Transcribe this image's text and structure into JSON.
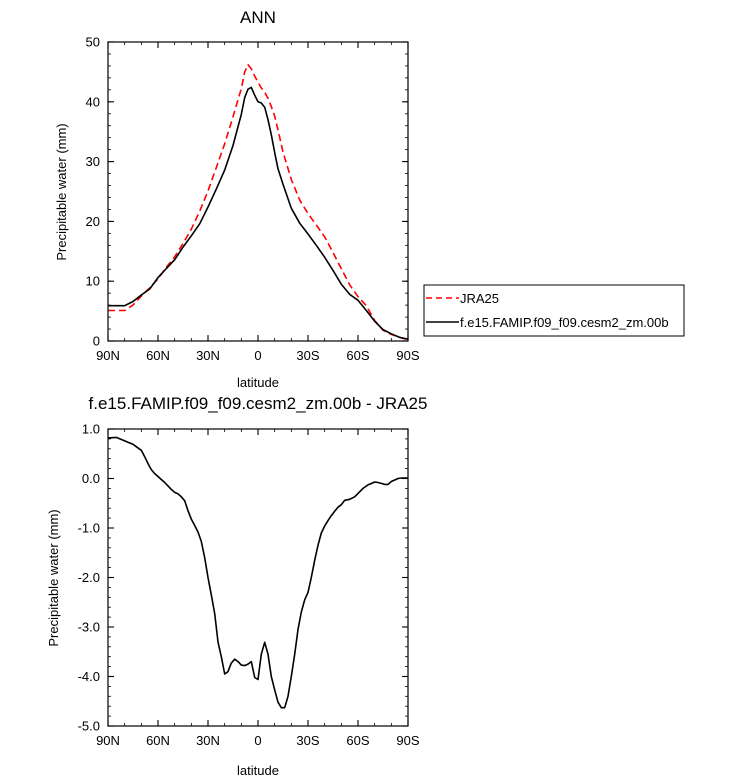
{
  "chart_data": [
    {
      "type": "line",
      "title": "ANN",
      "xlabel": "latitude",
      "ylabel": "Precipitable water (mm)",
      "xlim": [
        90,
        -90
      ],
      "ylim": [
        0,
        50
      ],
      "yticks": [
        0,
        10,
        20,
        30,
        40,
        50
      ],
      "ytick_labels": [
        "0",
        "10",
        "20",
        "30",
        "40",
        "50"
      ],
      "xticks": [
        90,
        60,
        30,
        0,
        -30,
        -60,
        -90
      ],
      "xtick_labels": [
        "90N",
        "60N",
        "30N",
        "0",
        "30S",
        "60S",
        "90S"
      ],
      "legend": "right, outside plot",
      "series": [
        {
          "name": "JRA25",
          "color": "#ff0000",
          "dash": "dashed",
          "x": [
            90,
            80,
            75,
            70,
            65,
            60,
            55,
            50,
            45,
            40,
            35,
            30,
            25,
            20,
            15,
            10,
            8,
            6,
            4,
            2,
            0,
            -2,
            -4,
            -6,
            -8,
            -10,
            -12,
            -15,
            -20,
            -25,
            -30,
            -35,
            -40,
            -45,
            -50,
            -55,
            -60,
            -65,
            -70,
            -75,
            -80,
            -85,
            -90
          ],
          "values": [
            5.1,
            5.1,
            6.0,
            7.5,
            8.9,
            10.4,
            12.3,
            14.1,
            16.3,
            18.7,
            21.7,
            25.1,
            29.0,
            33.0,
            37.5,
            42.2,
            45.0,
            46.2,
            45.5,
            44.3,
            43.3,
            42.3,
            41.6,
            40.6,
            39.2,
            37.6,
            35.3,
            31.6,
            27.0,
            23.6,
            21.3,
            19.4,
            17.4,
            14.8,
            12.1,
            9.4,
            7.4,
            5.9,
            3.4,
            1.8,
            1.1,
            0.6,
            0.2
          ]
        },
        {
          "name": "f.e15.FAMIP.f09_f09.cesm2_zm.00b",
          "color": "#000000",
          "dash": "solid",
          "x": [
            90,
            80,
            75,
            70,
            65,
            60,
            55,
            50,
            45,
            40,
            35,
            30,
            25,
            20,
            15,
            10,
            8,
            6,
            4,
            2,
            0,
            -2,
            -4,
            -6,
            -8,
            -10,
            -12,
            -15,
            -20,
            -25,
            -30,
            -35,
            -40,
            -45,
            -50,
            -55,
            -60,
            -65,
            -70,
            -75,
            -80,
            -85,
            -90
          ],
          "values": [
            5.9,
            5.9,
            6.6,
            7.7,
            8.7,
            10.6,
            12.1,
            13.6,
            15.7,
            17.6,
            19.6,
            22.4,
            25.4,
            28.6,
            32.7,
            37.9,
            40.7,
            42.1,
            42.4,
            41.1,
            40.0,
            39.8,
            39.1,
            37.0,
            34.5,
            31.5,
            28.8,
            26.2,
            22.2,
            19.7,
            17.9,
            16.0,
            14.0,
            11.8,
            9.5,
            7.8,
            6.8,
            5.1,
            3.3,
            1.9,
            1.2,
            0.6,
            0.3
          ]
        }
      ]
    },
    {
      "type": "line",
      "title": "f.e15.FAMIP.f09_f09.cesm2_zm.00b - JRA25",
      "xlabel": "latitude",
      "ylabel": "Precipitable water (mm)",
      "xlim": [
        90,
        -90
      ],
      "ylim": [
        -5,
        1
      ],
      "yticks": [
        1,
        0,
        -1,
        -2,
        -3,
        -4,
        -5
      ],
      "ytick_labels": [
        "1.0",
        "0.0",
        "-1.0",
        "-2.0",
        "-3.0",
        "-4.0",
        "-5.0"
      ],
      "xticks": [
        90,
        60,
        30,
        0,
        -30,
        -60,
        -90
      ],
      "xtick_labels": [
        "90N",
        "60N",
        "30N",
        "0",
        "30S",
        "60S",
        "90S"
      ],
      "series": [
        {
          "color": "#000000",
          "dash": "solid",
          "x": [
            90,
            85,
            80,
            75,
            70,
            68,
            66,
            64,
            62,
            60,
            58,
            56,
            54,
            52,
            50,
            48,
            46,
            44,
            42,
            40,
            38,
            36,
            34,
            32,
            30,
            28,
            26,
            24,
            22,
            20,
            18,
            16,
            14,
            12,
            10,
            8,
            6,
            4,
            2,
            0,
            -2,
            -4,
            -6,
            -8,
            -10,
            -12,
            -14,
            -16,
            -18,
            -20,
            -22,
            -24,
            -26,
            -28,
            -30,
            -32,
            -34,
            -36,
            -38,
            -40,
            -42,
            -44,
            -46,
            -48,
            -50,
            -52,
            -55,
            -58,
            -60,
            -63,
            -66,
            -70,
            -72,
            -74,
            -76,
            -78,
            -80,
            -82,
            -84,
            -86,
            -88,
            -90
          ],
          "values": [
            0.82,
            0.83,
            0.76,
            0.69,
            0.57,
            0.44,
            0.3,
            0.18,
            0.1,
            0.04,
            -0.02,
            -0.08,
            -0.15,
            -0.22,
            -0.28,
            -0.31,
            -0.37,
            -0.45,
            -0.65,
            -0.82,
            -0.95,
            -1.08,
            -1.27,
            -1.6,
            -2.0,
            -2.35,
            -2.73,
            -3.3,
            -3.6,
            -3.95,
            -3.9,
            -3.73,
            -3.65,
            -3.7,
            -3.77,
            -3.78,
            -3.75,
            -3.7,
            -4.02,
            -4.06,
            -3.55,
            -3.31,
            -3.55,
            -4.0,
            -4.27,
            -4.52,
            -4.63,
            -4.63,
            -4.4,
            -4.0,
            -3.55,
            -3.05,
            -2.7,
            -2.45,
            -2.3,
            -2.0,
            -1.65,
            -1.35,
            -1.1,
            -0.96,
            -0.85,
            -0.75,
            -0.66,
            -0.58,
            -0.53,
            -0.44,
            -0.42,
            -0.37,
            -0.3,
            -0.2,
            -0.13,
            -0.07,
            -0.08,
            -0.1,
            -0.12,
            -0.12,
            -0.06,
            -0.03,
            0.0,
            0.01,
            0.01,
            0.01
          ]
        }
      ]
    }
  ]
}
